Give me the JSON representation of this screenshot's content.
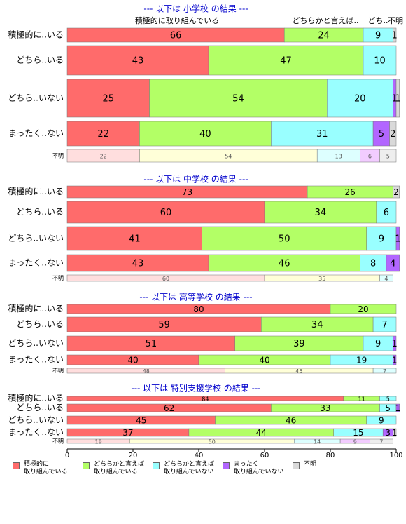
{
  "chart_data": {
    "type": "bar",
    "xlim": [
      0,
      100
    ],
    "xticks": [
      0,
      20,
      40,
      60,
      80,
      100
    ],
    "series": [
      {
        "name": "積極的に\n取り組んでいる",
        "color": "#ff6b6b",
        "light_color": "#ffdede"
      },
      {
        "name": "どちらかと言えば\n取り組んでいる",
        "color": "#b3ff66",
        "light_color": "#ffffd8"
      },
      {
        "name": "どちらかと言えば\n取り組んでいない",
        "color": "#99ffff",
        "light_color": "#ddffff"
      },
      {
        "name": "まったく\n取り組んでいない",
        "color": "#b266ff",
        "light_color": "#f2ccff"
      },
      {
        "name": "不明",
        "color": "#d9d9d9",
        "light_color": "#eeeeee"
      }
    ],
    "panels": [
      {
        "title": "--- 以下は 小学校 の結果 ---",
        "column_labels": [
          "積極的に取り組んでいる",
          "どちらかと言えば..",
          "どち..",
          "不明"
        ],
        "categories": [
          "積極的に..いる",
          "どちら..いる",
          "どちら..いない",
          "まったく..ない",
          "不明"
        ],
        "values": [
          [
            66,
            24,
            9,
            null,
            1
          ],
          [
            43,
            47,
            10,
            null,
            null
          ],
          [
            25,
            54,
            20,
            1,
            1
          ],
          [
            22,
            40,
            31,
            5,
            2
          ],
          [
            22,
            54,
            13,
            6,
            5
          ]
        ]
      },
      {
        "title": "--- 以下は 中学校 の結果 ---",
        "categories": [
          "積極的に..いる",
          "どちら..いる",
          "どちら..いない",
          "まったく..ない",
          "不明"
        ],
        "values": [
          [
            73,
            26,
            null,
            null,
            2
          ],
          [
            60,
            34,
            6,
            null,
            null
          ],
          [
            41,
            50,
            9,
            1,
            null
          ],
          [
            43,
            46,
            8,
            4,
            null
          ],
          [
            60,
            35,
            4,
            null,
            null
          ]
        ]
      },
      {
        "title": "--- 以下は 高等学校 の結果 ---",
        "categories": [
          "積極的に..いる",
          "どちら..いる",
          "どちら..いない",
          "まったく..ない",
          "不明"
        ],
        "values": [
          [
            80,
            20,
            null,
            null,
            null
          ],
          [
            59,
            34,
            7,
            null,
            null
          ],
          [
            51,
            39,
            9,
            1,
            null
          ],
          [
            40,
            40,
            19,
            1,
            null
          ],
          [
            48,
            45,
            7,
            null,
            null
          ]
        ]
      },
      {
        "title": "--- 以下は 特別支援学校 の結果 ---",
        "categories": [
          "積極的に..いる",
          "どちら..いる",
          "どちら..いない",
          "まったく..ない",
          "不明"
        ],
        "values": [
          [
            84,
            11,
            5,
            null,
            null
          ],
          [
            62,
            33,
            5,
            1,
            null
          ],
          [
            45,
            46,
            9,
            null,
            null
          ],
          [
            37,
            44,
            15,
            3,
            1
          ],
          [
            19,
            50,
            14,
            9,
            7
          ]
        ]
      }
    ]
  }
}
